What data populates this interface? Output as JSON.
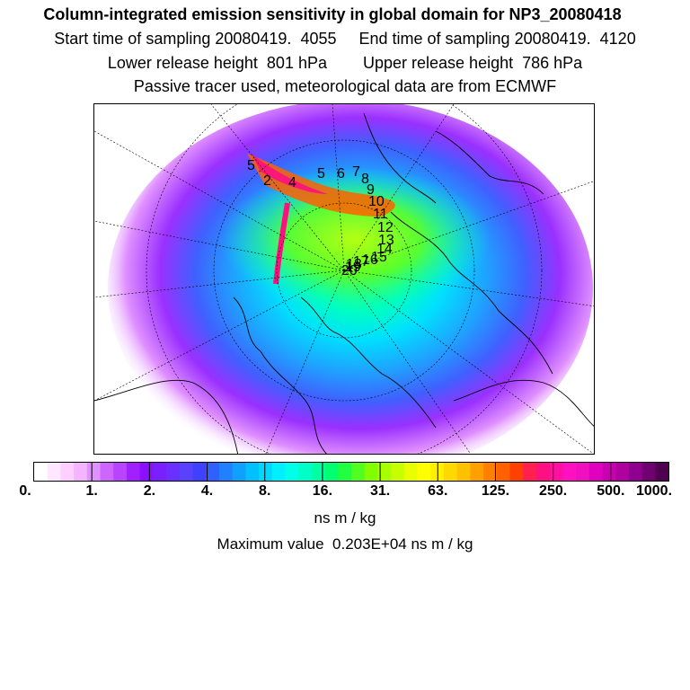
{
  "title": "Column-integrated emission sensitivity in global domain for NP3_20080418",
  "line2": "Start time of sampling 20080419.  4055     End time of sampling 20080419.  4120",
  "line3": "Lower release height  801 hPa        Upper release height  786 hPa",
  "line4": "Passive tracer used, meteorological data are from ECMWF",
  "colorbar": {
    "units": "ns m / kg",
    "ticks": [
      "0.",
      "1.",
      "2.",
      "4.",
      "8.",
      "16.",
      "31.",
      "63.",
      "125.",
      "250.",
      "500.",
      "1000."
    ],
    "colors": [
      "#ffffff",
      "#ffe8ff",
      "#ffd0ff",
      "#f4b4ff",
      "#e090ff",
      "#cc66ff",
      "#b844ff",
      "#a020ff",
      "#8a10ff",
      "#7a20ff",
      "#6a30ff",
      "#5a40ff",
      "#4040ff",
      "#3060ff",
      "#2080ff",
      "#10a0ff",
      "#00c0ff",
      "#00d8ff",
      "#00f0ff",
      "#00ffe8",
      "#00ffc8",
      "#00ffa0",
      "#00ff70",
      "#20ff40",
      "#50ff20",
      "#80ff00",
      "#a8ff00",
      "#c8ff00",
      "#e8ff00",
      "#ffff00",
      "#fff000",
      "#ffd800",
      "#ffc000",
      "#ffa000",
      "#ff8000",
      "#ff6000",
      "#ff4000",
      "#ff2050",
      "#ff1080",
      "#ff10a0",
      "#ff10c0",
      "#f010c0",
      "#e000c0",
      "#c800b0",
      "#b000a0",
      "#900090",
      "#700070",
      "#500050"
    ]
  },
  "max_value_text": "Maximum value  0.203E+04 ns m / kg",
  "map": {
    "trajectory_labels": [
      "5",
      "2",
      "4",
      "5",
      "6",
      "7",
      "8",
      "9",
      "10",
      "11",
      "12",
      "13",
      "14",
      "15",
      "16",
      "17",
      "18",
      "19",
      "20"
    ]
  }
}
